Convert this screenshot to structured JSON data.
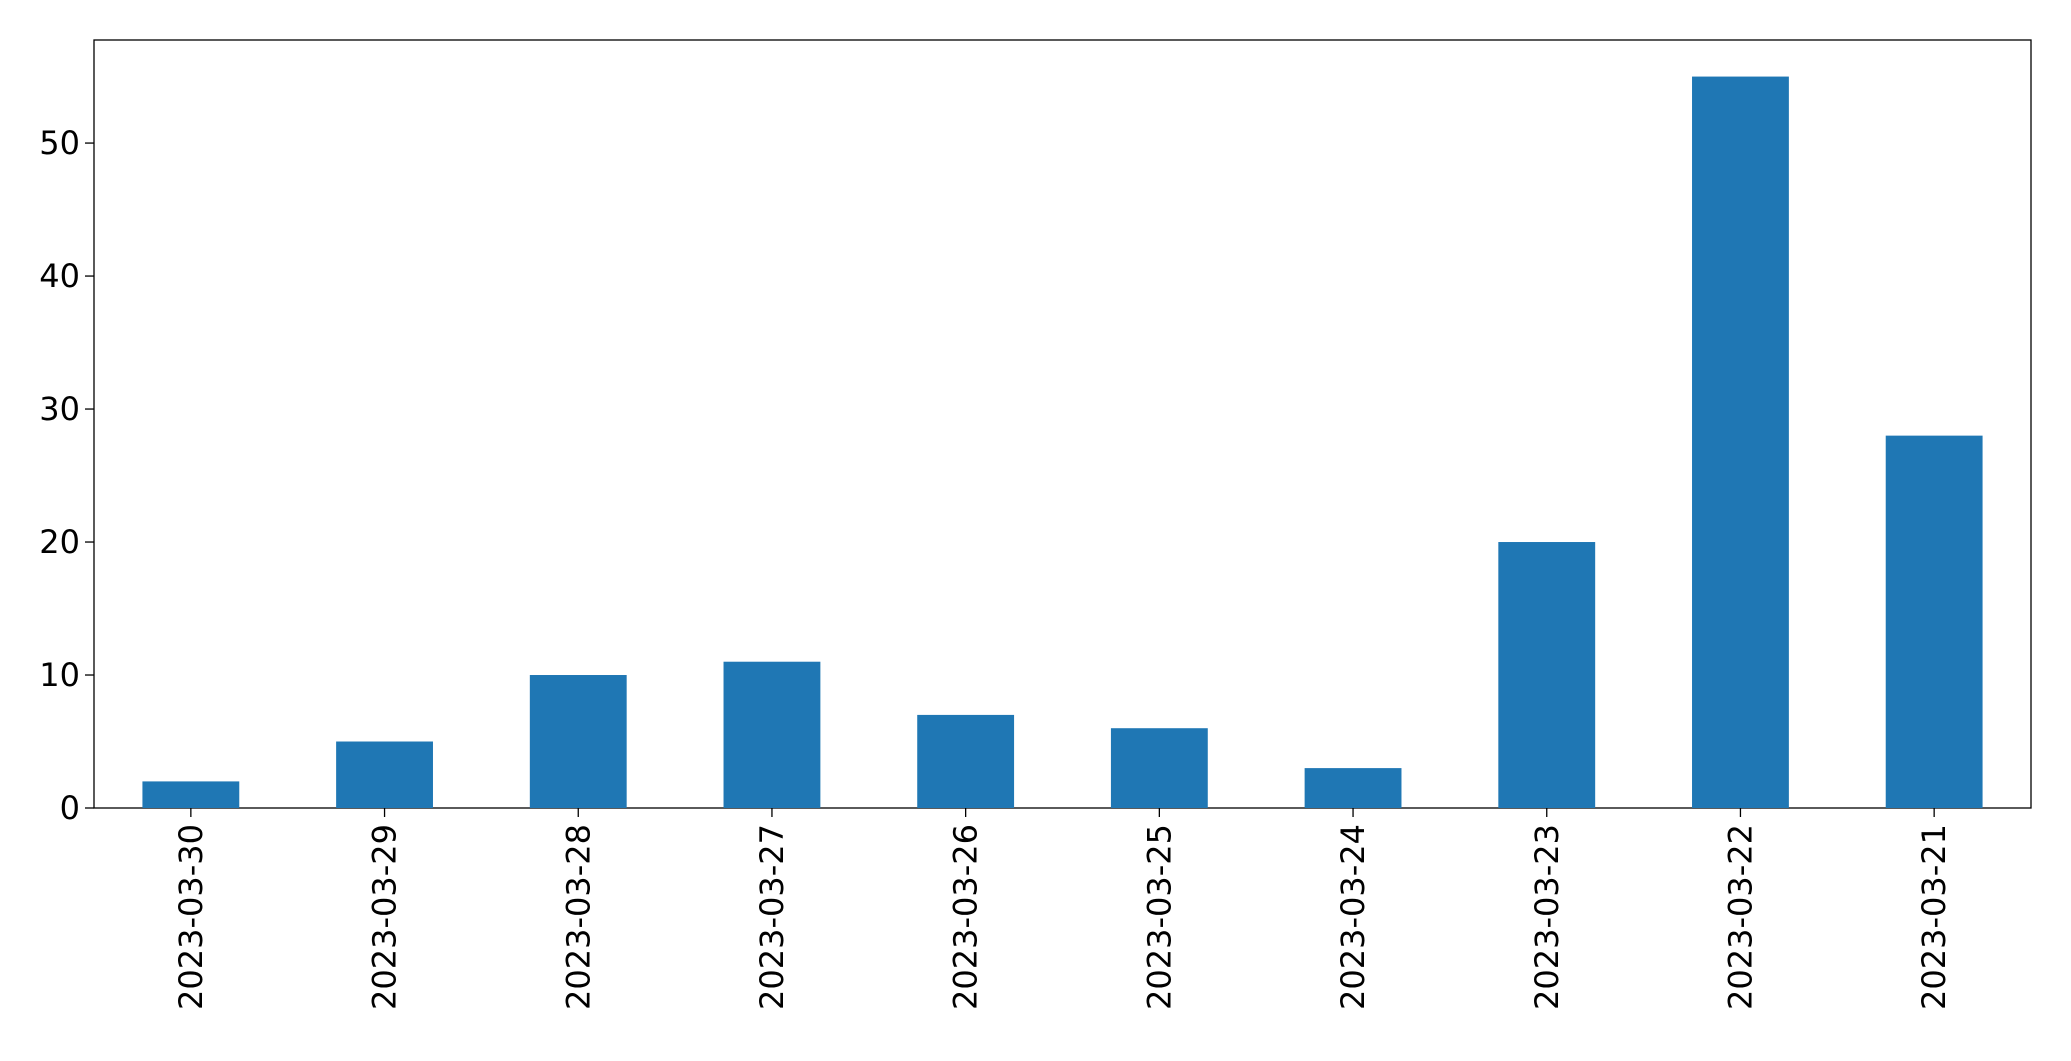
{
  "chart_data": {
    "type": "bar",
    "categories": [
      "2023-03-30",
      "2023-03-29",
      "2023-03-28",
      "2023-03-27",
      "2023-03-26",
      "2023-03-25",
      "2023-03-24",
      "2023-03-23",
      "2023-03-22",
      "2023-03-21"
    ],
    "values": [
      2,
      5,
      10,
      11,
      7,
      6,
      3,
      20,
      55,
      28
    ],
    "color": "#1f77b4",
    "ylim": [
      0,
      57.75
    ],
    "yticks": [
      0,
      10,
      20,
      30,
      40,
      50
    ],
    "grid": false
  }
}
